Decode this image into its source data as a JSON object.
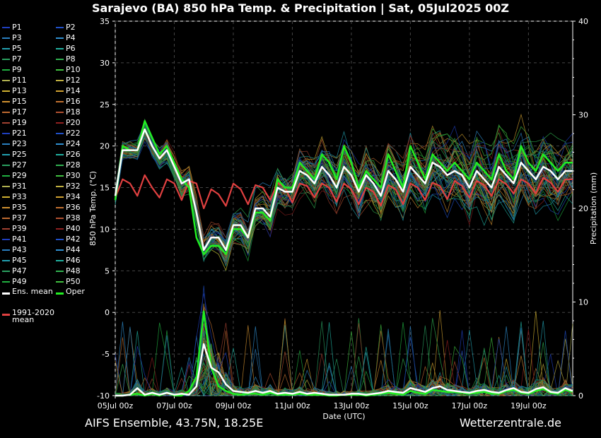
{
  "header": {
    "title": "Sarajevo  (BA)  850 hPa Temp. & Precipitation | Sat, 05Jul2025 00Z"
  },
  "footer": {
    "model": "AIFS Ensemble, 43.75N, 18.25E",
    "brand": "Wetterzentrale.de"
  },
  "legend": {
    "members": [
      "P1",
      "P2",
      "P3",
      "P4",
      "P5",
      "P6",
      "P7",
      "P8",
      "P9",
      "P10",
      "P11",
      "P12",
      "P13",
      "P14",
      "P15",
      "P16",
      "P17",
      "P18",
      "P19",
      "P20",
      "P21",
      "P22",
      "P23",
      "P24",
      "P25",
      "P26",
      "P27",
      "P28",
      "P29",
      "P30",
      "P31",
      "P32",
      "P33",
      "P34",
      "P35",
      "P36",
      "P37",
      "P38",
      "P39",
      "P40",
      "P41",
      "P42",
      "P43",
      "P44",
      "P45",
      "P46",
      "P47",
      "P48",
      "P49",
      "P50"
    ],
    "member_colors": [
      "#1f3fbf",
      "#2050c8",
      "#2a7fc0",
      "#2f8fd0",
      "#22a0b0",
      "#20b0a0",
      "#2aa060",
      "#30b050",
      "#20b040",
      "#40c040",
      "#b0b050",
      "#c0b040",
      "#d0b030",
      "#d0a030",
      "#d09030",
      "#c07030",
      "#c06a30",
      "#b05030",
      "#a04030",
      "#902020",
      "#1f3fbf",
      "#2050c8",
      "#2a7fc0",
      "#2f8fd0",
      "#22a0b0",
      "#20b0a0",
      "#2aa060",
      "#30b050",
      "#20b040",
      "#40c040",
      "#b0b050",
      "#c0b040",
      "#d0b030",
      "#d0a030",
      "#d09030",
      "#c07030",
      "#c06a30",
      "#b05030",
      "#a04030",
      "#902020",
      "#1f3fbf",
      "#2050c8",
      "#2a7fc0",
      "#2f8fd0",
      "#22a0b0",
      "#20b0a0",
      "#2aa060",
      "#30b050",
      "#20b040",
      "#40c040"
    ],
    "ens_mean": "Ens. mean",
    "oper": "Oper",
    "clim_mean": "1991-2020\nmean"
  },
  "colors": {
    "ens_mean": "#ffffff",
    "oper": "#22ee22",
    "clim": "#e04040"
  },
  "chart_data": {
    "type": "line",
    "xlabel": "Date (UTC)",
    "ylabel": "850 hPa Temp. (°C)",
    "y2label": "Precipitation (mm)",
    "ylim": [
      -10,
      35
    ],
    "y2lim": [
      0,
      40
    ],
    "yticks": [
      -10,
      -5,
      0,
      5,
      10,
      15,
      20,
      25,
      30,
      35
    ],
    "y2ticks": [
      0,
      10,
      20,
      30,
      40
    ],
    "xlim_hours": [
      0,
      372
    ],
    "xticks": [
      {
        "h": 0,
        "label": "05Jul 00z"
      },
      {
        "h": 48,
        "label": "07Jul 00z"
      },
      {
        "h": 96,
        "label": "09Jul 00z"
      },
      {
        "h": 144,
        "label": "11Jul 00z"
      },
      {
        "h": 192,
        "label": "13Jul 00z"
      },
      {
        "h": 240,
        "label": "15Jul 00z"
      },
      {
        "h": 288,
        "label": "17Jul 00z"
      },
      {
        "h": 336,
        "label": "19Jul 00z"
      }
    ],
    "grid": true,
    "legend_position": "left",
    "x_hours": [
      0,
      6,
      12,
      18,
      24,
      30,
      36,
      42,
      48,
      54,
      60,
      66,
      72,
      78,
      84,
      90,
      96,
      102,
      108,
      114,
      120,
      126,
      132,
      138,
      144,
      150,
      156,
      162,
      168,
      174,
      180,
      186,
      192,
      198,
      204,
      210,
      216,
      222,
      228,
      234,
      240,
      246,
      252,
      258,
      264,
      270,
      276,
      282,
      288,
      294,
      300,
      306,
      312,
      318,
      324,
      330,
      336,
      342,
      348,
      354,
      360,
      366,
      372
    ],
    "series": [
      {
        "name": "Ens. mean",
        "axis": "temp",
        "values": [
          14,
          19.5,
          19.5,
          19.5,
          22,
          20,
          18.5,
          19.5,
          17.5,
          15.5,
          16,
          12,
          7.5,
          9,
          9,
          7.5,
          10.5,
          10.5,
          9,
          12.5,
          12.5,
          11.5,
          15,
          14.5,
          14.5,
          17,
          16.5,
          15.5,
          17.5,
          16.5,
          15,
          17.5,
          16.5,
          14.5,
          16.5,
          15.5,
          14,
          17,
          16,
          14.5,
          17.5,
          16.5,
          15.5,
          18,
          17.5,
          16.5,
          17,
          16.5,
          15,
          17,
          16,
          15,
          17.5,
          16.5,
          15.5,
          18,
          17,
          16,
          17.5,
          17,
          16,
          17,
          17
        ]
      },
      {
        "name": "Oper",
        "axis": "temp",
        "values": [
          13.5,
          20,
          19.5,
          19.5,
          23,
          21,
          19,
          20,
          18,
          16,
          15,
          9,
          7,
          8,
          8,
          7,
          10,
          10,
          9,
          12,
          12,
          11,
          16,
          15,
          15,
          18,
          17,
          16,
          19,
          18,
          16,
          20,
          18,
          15,
          17,
          16,
          15,
          19,
          17,
          15,
          20,
          18,
          16,
          19,
          18,
          17,
          18,
          17,
          16,
          18,
          17,
          16,
          19,
          17,
          16,
          20,
          18,
          17,
          19,
          18,
          17,
          18,
          18
        ]
      },
      {
        "name": "1991-2020 mean",
        "axis": "temp",
        "values": [
          13.8,
          16,
          15.5,
          14,
          16.5,
          15,
          13.8,
          16,
          15.5,
          13.5,
          15.8,
          15.5,
          12.5,
          14.8,
          14.2,
          12.8,
          15.5,
          14.8,
          13,
          15.3,
          15,
          13.5,
          15.6,
          15,
          13.2,
          15.5,
          15.2,
          13.8,
          15.5,
          15,
          13.3,
          15.5,
          14.8,
          13,
          15,
          14.5,
          12.8,
          15.3,
          14.8,
          13,
          15.5,
          15,
          13.5,
          15.6,
          15.2,
          13.6,
          15.8,
          15.2,
          13.8,
          15.8,
          15.3,
          14,
          16,
          15.4,
          14.3,
          16,
          15.5,
          14.3,
          16.2,
          15.6,
          14.5,
          16,
          16
        ]
      },
      {
        "name": "Ens. mean precipitation",
        "axis": "precip",
        "values": [
          0,
          0,
          0.1,
          0.8,
          0.1,
          0.3,
          0.1,
          0.3,
          0.1,
          0.2,
          0.1,
          1,
          5.5,
          3,
          2.5,
          1.2,
          0.5,
          0.4,
          0.3,
          0.5,
          0.3,
          0.5,
          0.2,
          0.3,
          0.2,
          0.4,
          0.2,
          0.3,
          0.2,
          0.1,
          0.1,
          0.1,
          0.2,
          0.2,
          0.1,
          0.2,
          0.3,
          0.5,
          0.4,
          0.3,
          0.8,
          0.6,
          0.4,
          0.8,
          1,
          0.6,
          0.5,
          0.4,
          0.3,
          0.5,
          0.6,
          0.4,
          0.3,
          0.6,
          0.8,
          0.4,
          0.3,
          0.7,
          0.9,
          0.4,
          0.3,
          0.8,
          0.5
        ]
      },
      {
        "name": "Oper precipitation",
        "axis": "precip",
        "values": [
          0,
          0,
          0.1,
          0.2,
          0,
          0.2,
          0,
          0.3,
          0,
          0,
          0.5,
          2,
          9,
          3,
          1,
          0.5,
          0.2,
          0.1,
          0.2,
          0.2,
          0.1,
          0.3,
          0.1,
          0.1,
          0.1,
          0.2,
          0.1,
          0.1,
          0.1,
          0,
          0,
          0.1,
          0.1,
          0.1,
          0,
          0.1,
          0.2,
          0.3,
          0.2,
          0.1,
          0.5,
          0.3,
          0.2,
          0.6,
          0.5,
          0.4,
          0.4,
          0.3,
          0.2,
          0.3,
          0.4,
          0.2,
          0.2,
          0.5,
          0.6,
          0.3,
          0.2,
          0.5,
          0.7,
          0.3,
          0.2,
          0.6,
          0.4
        ]
      }
    ]
  }
}
